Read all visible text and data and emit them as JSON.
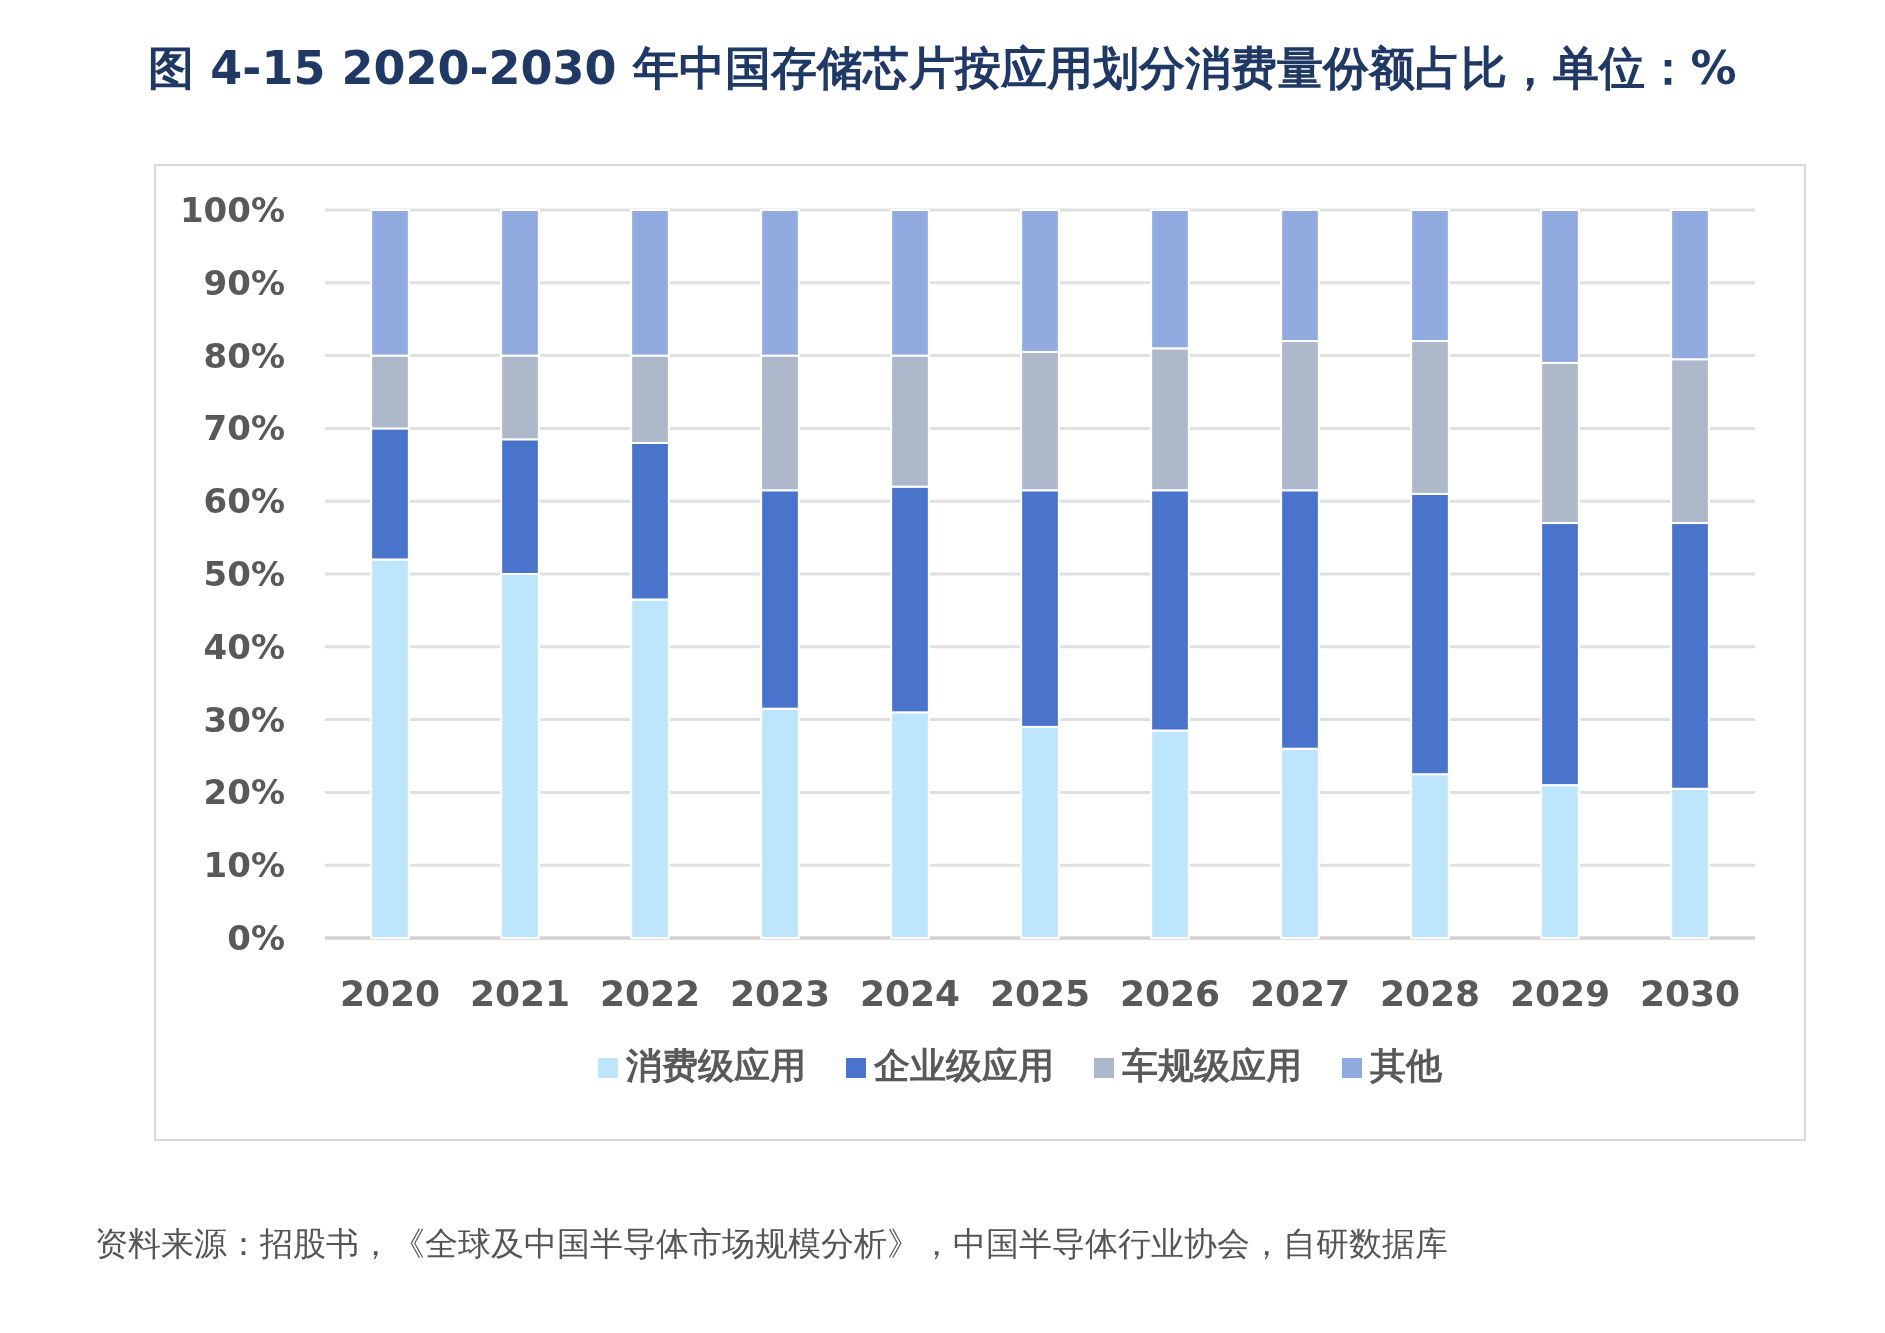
{
  "chart_data": {
    "type": "bar",
    "stacked": true,
    "title": "图  4-15 2020-2030 年中国存储芯片按应用划分消费量份额占比，单位：%",
    "categories": [
      "2020",
      "2021",
      "2022",
      "2023",
      "2024",
      "2025",
      "2026",
      "2027",
      "2028",
      "2029",
      "2030"
    ],
    "series": [
      {
        "name": "消费级应用",
        "color": "#bde5fb",
        "values": [
          52,
          50,
          46.5,
          31.5,
          31,
          29,
          28.5,
          26,
          22.5,
          21,
          20.5
        ]
      },
      {
        "name": "企业级应用",
        "color": "#4a73cb",
        "values": [
          18,
          18.5,
          21.5,
          30,
          31,
          32.5,
          33,
          35.5,
          38.5,
          36,
          36.5
        ]
      },
      {
        "name": "车规级应用",
        "color": "#adb8cb",
        "values": [
          10,
          11.5,
          12,
          18.5,
          18,
          19,
          19.5,
          20.5,
          21,
          22,
          22.5
        ]
      },
      {
        "name": "其他",
        "color": "#91abe1",
        "values": [
          20,
          20,
          20,
          20,
          20,
          19.5,
          19,
          18,
          18,
          21,
          20.5
        ]
      }
    ],
    "ylim": [
      0,
      100
    ],
    "yticks": [
      {
        "value": 0,
        "label": "0%"
      },
      {
        "value": 10,
        "label": "10%"
      },
      {
        "value": 20,
        "label": "20%"
      },
      {
        "value": 30,
        "label": "30%"
      },
      {
        "value": 40,
        "label": "40%"
      },
      {
        "value": 50,
        "label": "50%"
      },
      {
        "value": 60,
        "label": "60%"
      },
      {
        "value": 70,
        "label": "70%"
      },
      {
        "value": 80,
        "label": "80%"
      },
      {
        "value": 90,
        "label": "90%"
      },
      {
        "value": 100,
        "label": "100%"
      }
    ],
    "grid": "y",
    "legend": "bottom",
    "annotations": [
      "资料来源：招股书，《全球及中国半导体市场规模分析》，中国半导体行业协会，自研数据库"
    ]
  }
}
